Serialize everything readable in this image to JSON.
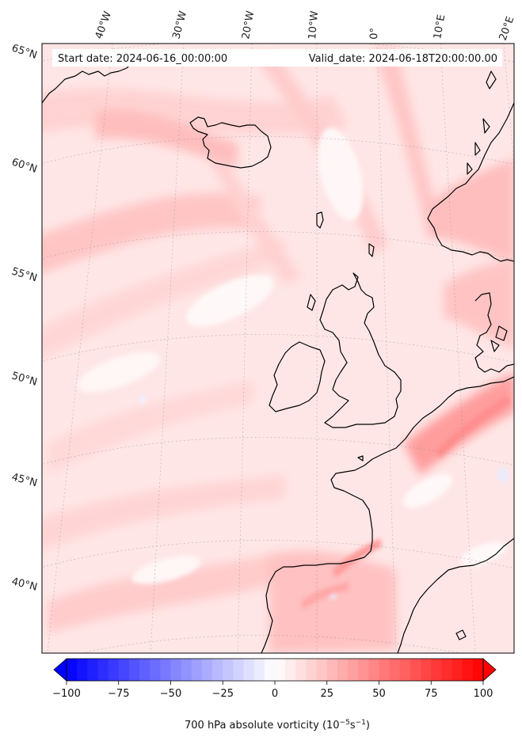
{
  "map": {
    "start_date_label": "Start date: 2024-06-16_00:00:00",
    "valid_date_label": "Valid_date: 2024-06-18T20:00:00.00",
    "longitude_labels": [
      "40°W",
      "30°W",
      "20°W",
      "10°W",
      "0°",
      "10°E",
      "20°E"
    ],
    "latitude_labels": [
      "65°N",
      "60°N",
      "55°N",
      "50°N",
      "45°N",
      "40°N"
    ],
    "field_colors": {
      "background": "#ffe6e6",
      "band_light": "#ffd2d2",
      "band_mid": "#ffbcbc",
      "band_strong": "#ff9a9a",
      "white_patch": "#fff8f8",
      "blue_patch": "#e6ecff"
    }
  },
  "colorbar": {
    "tick_labels": [
      "−100",
      "−75",
      "−50",
      "−25",
      "0",
      "25",
      "50",
      "75",
      "100"
    ],
    "tick_values": [
      -100,
      -75,
      -50,
      -25,
      0,
      25,
      50,
      75,
      100
    ],
    "min": -100,
    "max": 100,
    "levels": 40,
    "label_main": "700 hPa absolute vorticity (10",
    "label_exp1": "−5",
    "label_mid": "s",
    "label_exp2": "−1",
    "label_end": ")",
    "color_low": "#0000ff",
    "color_mid": "#ffffff",
    "color_high": "#ff0000"
  }
}
